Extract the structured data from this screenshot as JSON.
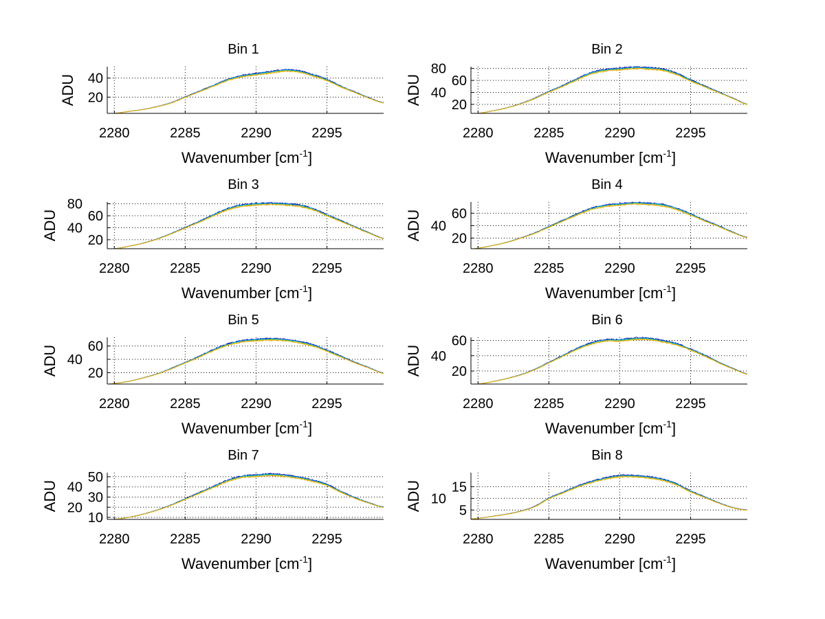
{
  "chart_data": {
    "type": "line",
    "layout": "4x2 subplots",
    "x": [
      2280,
      2281,
      2282,
      2283,
      2284,
      2285,
      2286,
      2287,
      2288,
      2289,
      2290,
      2291,
      2292,
      2293,
      2294,
      2295,
      2296,
      2297,
      2298,
      2299
    ],
    "xlim": [
      2279.5,
      2299
    ],
    "xticks": [
      2280,
      2285,
      2290,
      2295
    ],
    "xlabel": "Wavenumber [cm",
    "xlabel_sup": "-1",
    "xlabel_close": "]",
    "ylabel": "ADU",
    "grid": true,
    "series_styles": [
      {
        "name": "trace 1",
        "color": "#00008f",
        "scale": 1.02
      },
      {
        "name": "trace 2",
        "color": "#0060ff",
        "scale": 1.01
      },
      {
        "name": "trace 3",
        "color": "#00c8c8",
        "scale": 1.0
      },
      {
        "name": "trace 4",
        "color": "#80c040",
        "scale": 0.99
      },
      {
        "name": "trace 5",
        "color": "#ffaa00",
        "scale": 0.98
      }
    ],
    "subplots": [
      {
        "title": "Bin 1",
        "ylim": [
          3,
          52
        ],
        "yticks": [
          20,
          40
        ],
        "values": [
          3,
          5,
          7,
          10,
          14,
          20,
          26,
          32,
          38,
          42,
          44,
          46,
          48,
          47,
          43,
          38,
          31,
          25,
          19,
          14
        ]
      },
      {
        "title": "Bin 2",
        "ylim": [
          5,
          83
        ],
        "yticks": [
          20,
          40,
          60,
          80
        ],
        "values": [
          5,
          9,
          14,
          21,
          30,
          41,
          51,
          62,
          72,
          77,
          79,
          81,
          80,
          78,
          71,
          60,
          50,
          40,
          30,
          20
        ]
      },
      {
        "title": "Bin 3",
        "ylim": [
          5,
          83
        ],
        "yticks": [
          20,
          40,
          60,
          80
        ],
        "values": [
          5,
          9,
          14,
          21,
          30,
          40,
          50,
          61,
          71,
          77,
          79,
          80,
          79,
          77,
          71,
          61,
          51,
          41,
          31,
          22
        ]
      },
      {
        "title": "Bin 4",
        "ylim": [
          3,
          78
        ],
        "yticks": [
          20,
          40,
          60
        ],
        "values": [
          4,
          8,
          13,
          20,
          28,
          38,
          48,
          58,
          67,
          72,
          74,
          76,
          75,
          73,
          67,
          58,
          48,
          39,
          29,
          21
        ]
      },
      {
        "title": "Bin 5",
        "ylim": [
          3,
          73
        ],
        "yticks": [
          20,
          40,
          60
        ],
        "values": [
          4,
          7,
          12,
          18,
          26,
          35,
          44,
          54,
          62,
          67,
          69,
          70,
          69,
          66,
          61,
          53,
          44,
          35,
          27,
          19
        ]
      },
      {
        "title": "Bin 6",
        "ylim": [
          3,
          64
        ],
        "yticks": [
          20,
          40,
          60
        ],
        "values": [
          3,
          6,
          10,
          15,
          22,
          31,
          40,
          49,
          56,
          60,
          60,
          62,
          62,
          59,
          55,
          48,
          40,
          31,
          23,
          16
        ]
      },
      {
        "title": "Bin 7",
        "ylim": [
          8,
          54
        ],
        "yticks": [
          10,
          20,
          30,
          40,
          50
        ],
        "values": [
          8,
          10,
          13,
          17,
          22,
          28,
          34,
          40,
          46,
          50,
          51,
          52,
          51,
          49,
          46,
          42,
          35,
          29,
          24,
          20
        ]
      },
      {
        "title": "Bin 8",
        "ylim": [
          1,
          21
        ],
        "yticks": [
          5,
          10,
          15
        ],
        "values": [
          1.5,
          2.3,
          3.2,
          4.5,
          6.5,
          10,
          12.5,
          15,
          17,
          18.5,
          19.5,
          19.5,
          19,
          18,
          16,
          13,
          10.5,
          8,
          6,
          5
        ]
      }
    ]
  }
}
